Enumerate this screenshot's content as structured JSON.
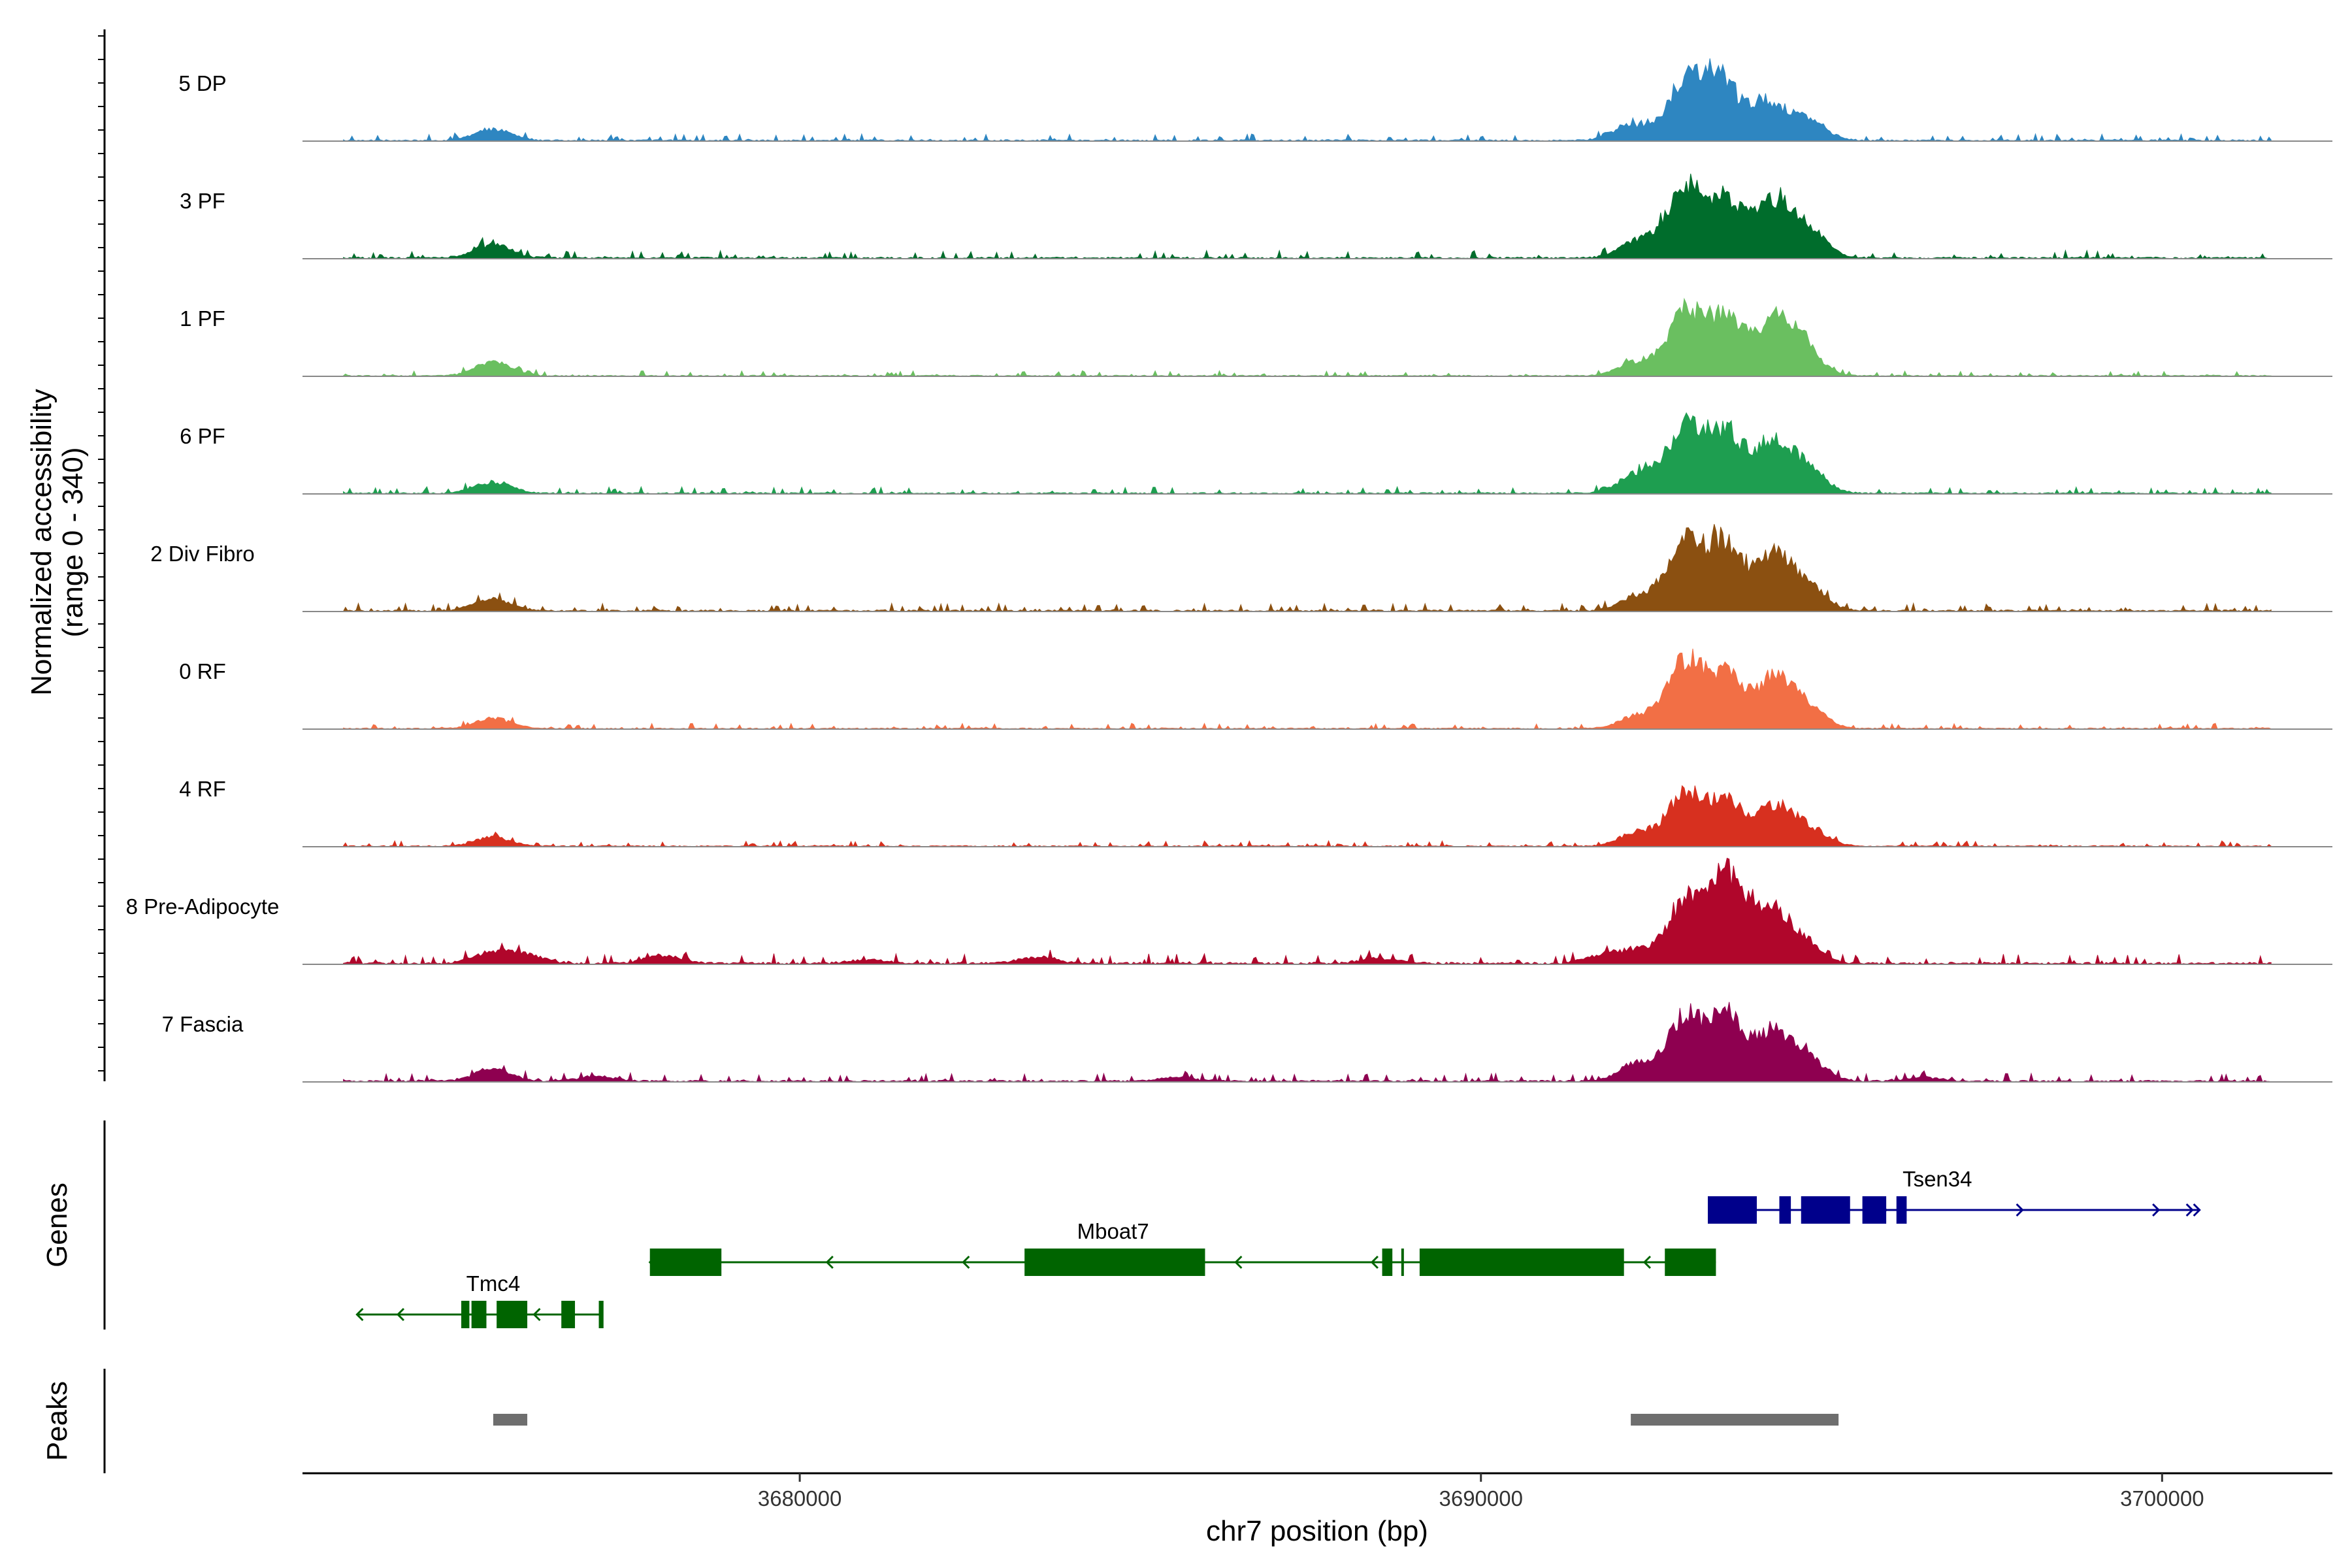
{
  "chart_data": {
    "type": "area",
    "ylabel": "Normalized accessibility",
    "ylabel_range": "(range 0 - 340)",
    "ylim": [
      0,
      340
    ],
    "xlabel": "chr7 position (bp)",
    "xlim": [
      3672700,
      3702500
    ],
    "x_ticks": [
      3680000,
      3690000,
      3700000
    ],
    "x_tick_labels": [
      "3680000",
      "3690000",
      "3700000"
    ],
    "tracks": [
      {
        "name": "5 DP",
        "color": "#2e86c1",
        "peaks": [
          [
            3675500,
            45
          ],
          [
            3693000,
            220
          ],
          [
            3693500,
            230
          ],
          [
            3694200,
            150
          ],
          [
            3694800,
            80
          ],
          [
            3692200,
            60
          ]
        ],
        "noise": 12
      },
      {
        "name": "3 PF",
        "color": "#006d2c",
        "peaks": [
          [
            3675500,
            55
          ],
          [
            3693000,
            270
          ],
          [
            3693600,
            220
          ],
          [
            3694300,
            210
          ],
          [
            3694800,
            110
          ],
          [
            3692300,
            70
          ]
        ],
        "noise": 14
      },
      {
        "name": "1 PF",
        "color": "#6abf60",
        "peaks": [
          [
            3675500,
            55
          ],
          [
            3693000,
            240
          ],
          [
            3693600,
            220
          ],
          [
            3694300,
            200
          ],
          [
            3694700,
            110
          ],
          [
            3692300,
            55
          ]
        ],
        "noise": 10
      },
      {
        "name": "6 PF",
        "color": "#1e9e50",
        "peaks": [
          [
            3675500,
            45
          ],
          [
            3693000,
            260
          ],
          [
            3693600,
            230
          ],
          [
            3694300,
            200
          ],
          [
            3694800,
            90
          ],
          [
            3692300,
            80
          ]
        ],
        "noise": 12
      },
      {
        "name": "2 Div Fibro",
        "color": "#8b5011",
        "peaks": [
          [
            3675500,
            50
          ],
          [
            3693000,
            260
          ],
          [
            3693600,
            250
          ],
          [
            3694300,
            200
          ],
          [
            3694800,
            90
          ],
          [
            3692300,
            60
          ]
        ],
        "noise": 14
      },
      {
        "name": "0 RF",
        "color": "#f26f45",
        "peaks": [
          [
            3675500,
            40
          ],
          [
            3693000,
            260
          ],
          [
            3693600,
            200
          ],
          [
            3694300,
            190
          ],
          [
            3694800,
            80
          ],
          [
            3692300,
            50
          ]
        ],
        "noise": 10
      },
      {
        "name": "4 RF",
        "color": "#d7301f",
        "peaks": [
          [
            3675500,
            35
          ],
          [
            3693000,
            200
          ],
          [
            3693600,
            170
          ],
          [
            3694300,
            150
          ],
          [
            3694800,
            70
          ],
          [
            3692300,
            55
          ]
        ],
        "noise": 10
      },
      {
        "name": "8 Pre-Adipocyte",
        "color": "#b0062b",
        "peaks": [
          [
            3675500,
            45
          ],
          [
            3676000,
            30
          ],
          [
            3678000,
            30
          ],
          [
            3683500,
            25
          ],
          [
            3692300,
            50
          ],
          [
            3693000,
            240
          ],
          [
            3693600,
            330
          ],
          [
            3694200,
            200
          ],
          [
            3694700,
            90
          ],
          [
            3691800,
            30
          ],
          [
            3688500,
            20
          ],
          [
            3681000,
            15
          ]
        ],
        "noise": 18
      },
      {
        "name": "7 Fascia",
        "color": "#8e0050",
        "peaks": [
          [
            3675500,
            50
          ],
          [
            3692300,
            70
          ],
          [
            3693000,
            240
          ],
          [
            3693600,
            250
          ],
          [
            3694300,
            190
          ],
          [
            3694800,
            80
          ],
          [
            3677000,
            20
          ],
          [
            3685500,
            15
          ],
          [
            3696500,
            15
          ]
        ],
        "noise": 14
      }
    ],
    "genes_label": "Genes",
    "peaks_label": "Peaks",
    "genes": [
      {
        "name": "Tsen34",
        "color": "#00008b",
        "strand": "+",
        "start": 3693350,
        "end": 3700550,
        "exons": [
          [
            3693350,
            3694050
          ],
          [
            3694400,
            3694550
          ],
          [
            3694700,
            3695400
          ],
          [
            3695600,
            3695950
          ],
          [
            3696100,
            3696250
          ]
        ],
        "tick_marks": [
          3693350,
          3694400,
          3695400
        ]
      },
      {
        "name": "Mboat7",
        "color": "#006400",
        "strand": "-",
        "start": 3677800,
        "end": 3693450,
        "exons": [
          [
            3677800,
            3678850
          ],
          [
            3683300,
            3685950
          ],
          [
            3688550,
            3688700
          ],
          [
            3689100,
            3692100
          ],
          [
            3692700,
            3693450
          ]
        ],
        "tick_marks": [
          3688850
        ]
      },
      {
        "name": "Tmc4",
        "color": "#006400",
        "strand": "-",
        "start": 3673500,
        "end": 3677100,
        "exons": [
          [
            3675050,
            3675150
          ],
          [
            3675200,
            3675400
          ],
          [
            3675550,
            3676000
          ],
          [
            3676500,
            3676700
          ],
          [
            3677050,
            3677100
          ]
        ],
        "tick_marks": [
          3675050,
          3675200,
          3677100
        ]
      }
    ],
    "peak_regions": [
      [
        3675500,
        3676000
      ],
      [
        3692200,
        3695250
      ]
    ]
  }
}
